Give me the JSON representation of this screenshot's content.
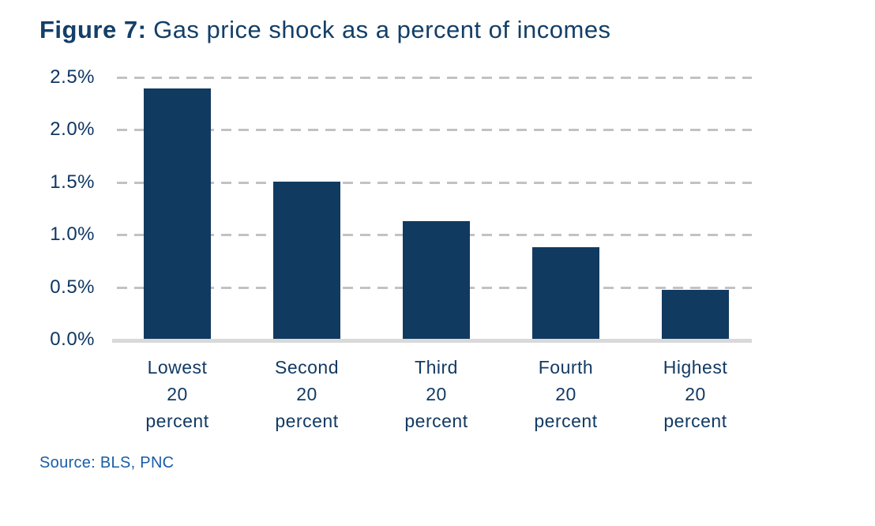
{
  "title": {
    "prefix": "Figure 7:",
    "rest": "Gas price shock as a percent of incomes"
  },
  "source": "Source: BLS, PNC",
  "colors": {
    "bar": "#113A60",
    "title_text": "#133F68",
    "tick_label": "#0E3763",
    "category_label": "#123A63",
    "source_text": "#1A5CA8",
    "gridline": "#C2C2C2",
    "axis_line": "#D9D9D9"
  },
  "chart_data": {
    "type": "bar",
    "title": "Figure 7: Gas price shock as a percent of incomes",
    "categories": [
      "Lowest 20 percent",
      "Second 20 percent",
      "Third 20 percent",
      "Fourth 20 percent",
      "Highest 20 percent"
    ],
    "values": [
      2.39,
      1.5,
      1.12,
      0.87,
      0.47
    ],
    "xlabel": "",
    "ylabel": "",
    "ylim": [
      0,
      2.5
    ],
    "y_ticks": [
      0.0,
      0.5,
      1.0,
      1.5,
      2.0,
      2.5
    ],
    "y_tick_labels": [
      "0.0%",
      "0.5%",
      "1.0%",
      "1.5%",
      "2.0%",
      "2.5%"
    ],
    "grid": "horizontal-dashed",
    "legend": false,
    "bar_color": "#113A60"
  }
}
